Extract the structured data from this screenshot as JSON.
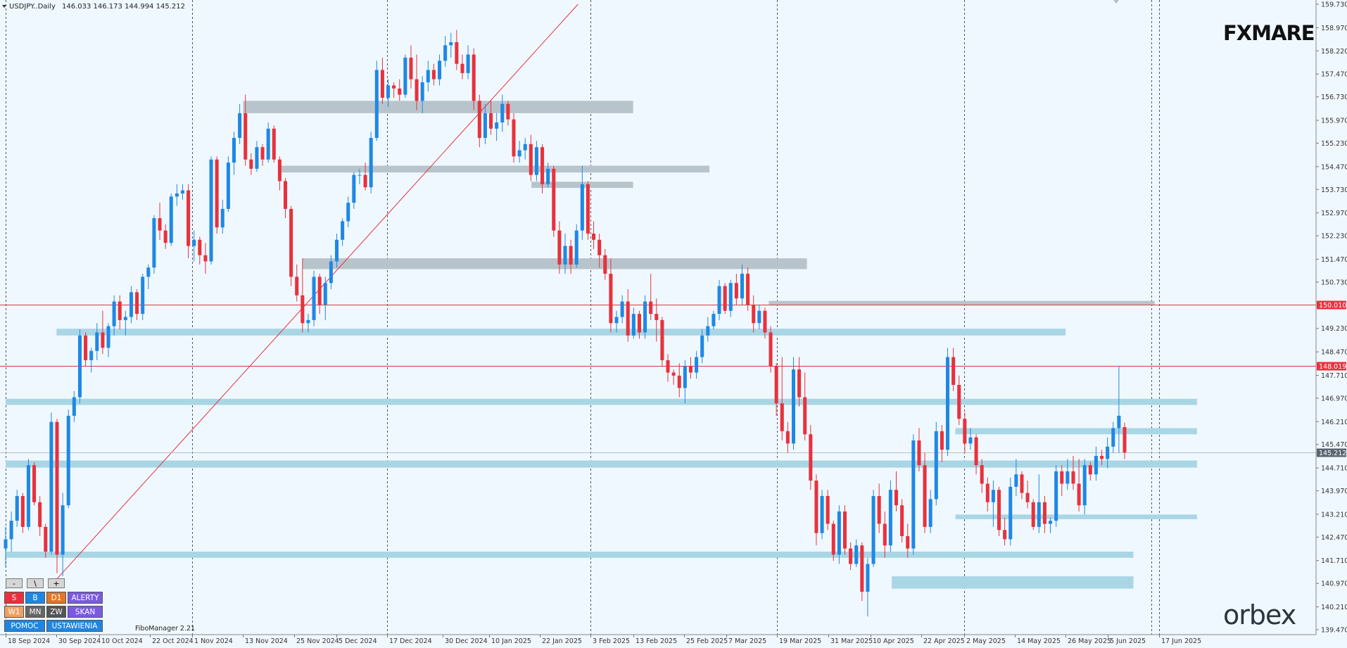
{
  "header": {
    "symbol": "USDJPY..Daily",
    "ohlc": "146.033 146.173 144.994 145.212"
  },
  "branding": {
    "top_logo": "FXMARE",
    "bottom_logo": "orbex"
  },
  "indicator": {
    "name": "FiboManager 2.21"
  },
  "toolbar": {
    "small_buttons": [
      "-",
      "\\",
      "+"
    ],
    "row1": [
      {
        "label": "S",
        "color": "#e8313c"
      },
      {
        "label": "B",
        "color": "#1f86e0"
      },
      {
        "label": "D1",
        "color": "#e0772b"
      },
      {
        "label": "ALERTY",
        "color": "#7a5ae0"
      }
    ],
    "row2": [
      {
        "label": "W1",
        "color": "#f0a060"
      },
      {
        "label": "MN",
        "color": "#666666"
      },
      {
        "label": "ZW",
        "color": "#555555"
      },
      {
        "label": "SKAN",
        "color": "#7a5ae0"
      }
    ],
    "row3": [
      {
        "label": "POMOC",
        "color": "#1f86e0"
      },
      {
        "label": "USTAWIENIA",
        "color": "#1f86e0"
      }
    ]
  },
  "chart_data": {
    "type": "candlestick",
    "symbol": "USDJPY",
    "timeframe": "Daily",
    "colors": {
      "bull": "#1e88e5",
      "bear": "#e8313c",
      "zone": "#a9d6e5",
      "level": "#e8313c"
    },
    "ylim": [
      139.47,
      159.73
    ],
    "y_ticks": [
      159.73,
      158.97,
      158.22,
      157.47,
      156.73,
      155.97,
      155.23,
      154.47,
      153.73,
      152.97,
      152.23,
      151.47,
      150.73,
      149.23,
      148.47,
      147.71,
      146.97,
      146.21,
      145.47,
      144.71,
      143.97,
      143.21,
      142.47,
      141.71,
      140.97,
      140.21,
      139.47
    ],
    "y_tick_labels": [
      "159.730",
      "158.970",
      "158.220",
      "157.470",
      "156.730",
      "155.970",
      "155.230",
      "154.470",
      "153.730",
      "152.970",
      "152.230",
      "151.470",
      "150.730",
      "149.230",
      "148.470",
      "147.710",
      "146.970",
      "146.210",
      "145.470",
      "144.710",
      "143.970",
      "143.210",
      "142.470",
      "141.710",
      "140.970",
      "140.210",
      "139.470"
    ],
    "x_labels": [
      "18 Sep 2024",
      "30 Sep 2024",
      "10 Oct 2024",
      "22 Oct 2024",
      "1 Nov 2024",
      "13 Nov 2024",
      "25 Nov 2024",
      "5 Dec 2024",
      "17 Dec 2024",
      "30 Dec 2024",
      "10 Jan 2025",
      "22 Jan 2025",
      "3 Feb 2025",
      "13 Feb 2025",
      "25 Feb 2025",
      "7 Mar 2025",
      "19 Mar 2025",
      "31 Mar 2025",
      "10 Apr 2025",
      "22 Apr 2025",
      "2 May 2025",
      "14 May 2025",
      "26 May 2025",
      "5 Jun 2025",
      "17 Jun 2025"
    ],
    "price_lines": [
      {
        "price": 150.01,
        "label": "150.010"
      },
      {
        "price": 148.019,
        "label": "148.019"
      }
    ],
    "current_price": {
      "price": 145.212,
      "label": "145.212"
    },
    "trendline": {
      "from": [
        "30 Sep 2024",
        141.1
      ],
      "to": [
        "31 Jan 2025",
        159.73
      ]
    },
    "zones": [
      {
        "from": "13 Nov 2024",
        "to": "13 Feb 2025",
        "low": 156.2,
        "high": 156.6
      },
      {
        "from": "22 Nov 2024",
        "to": "3 Mar 2025",
        "low": 154.28,
        "high": 154.5
      },
      {
        "from": "20 Jan 2025",
        "to": "13 Feb 2025",
        "low": 153.78,
        "high": 153.98
      },
      {
        "from": "27 Nov 2024",
        "to": "26 Mar 2025",
        "low": 151.15,
        "high": 151.5
      },
      {
        "from": "30 Sep 2024",
        "to": "26 May 2025",
        "low": 149.0,
        "high": 149.22
      },
      {
        "from": "18 Sep 2024",
        "to": "26 Jun 2025",
        "low": 146.75,
        "high": 146.95
      },
      {
        "from": "30 Apr 2025",
        "to": "26 Jun 2025",
        "low": 145.8,
        "high": 146.0
      },
      {
        "from": "18 Sep 2024",
        "to": "26 Jun 2025",
        "low": 144.72,
        "high": 144.95
      },
      {
        "from": "30 Apr 2025",
        "to": "26 Jun 2025",
        "low": 143.05,
        "high": 143.2
      },
      {
        "from": "18 Sep 2024",
        "to": "11 Jun 2025",
        "low": 141.8,
        "high": 142.0
      },
      {
        "from": "15 Apr 2025",
        "to": "11 Jun 2025",
        "low": 140.8,
        "high": 141.2
      },
      {
        "from": "17 Mar 2025",
        "to": "16 Jun 2025",
        "low": 150.0,
        "high": 150.12
      }
    ],
    "candles": [
      [
        142.1,
        142.8,
        141.5,
        142.4
      ],
      [
        142.4,
        143.3,
        142.0,
        143.0
      ],
      [
        143.0,
        144.0,
        142.8,
        143.8
      ],
      [
        143.8,
        143.9,
        142.6,
        142.8
      ],
      [
        142.8,
        145.0,
        142.7,
        144.8
      ],
      [
        144.8,
        144.9,
        143.5,
        143.6
      ],
      [
        143.6,
        143.8,
        142.5,
        142.8
      ],
      [
        142.8,
        142.9,
        141.8,
        142.0
      ],
      [
        142.0,
        146.5,
        141.9,
        146.2
      ],
      [
        146.2,
        146.3,
        141.3,
        141.9
      ],
      [
        141.9,
        143.9,
        141.2,
        143.5
      ],
      [
        143.5,
        146.6,
        143.4,
        146.4
      ],
      [
        146.4,
        147.2,
        146.2,
        147.0
      ],
      [
        147.0,
        149.2,
        146.8,
        149.0
      ],
      [
        149.0,
        149.1,
        148.0,
        148.2
      ],
      [
        148.2,
        148.6,
        147.8,
        148.5
      ],
      [
        148.5,
        149.4,
        148.2,
        149.1
      ],
      [
        149.1,
        149.8,
        148.4,
        148.6
      ],
      [
        148.6,
        149.4,
        148.3,
        149.3
      ],
      [
        149.3,
        150.3,
        149.0,
        150.1
      ],
      [
        150.1,
        150.3,
        149.2,
        149.5
      ],
      [
        149.5,
        149.8,
        149.0,
        149.6
      ],
      [
        149.6,
        150.6,
        149.4,
        150.4
      ],
      [
        150.4,
        150.5,
        149.5,
        149.7
      ],
      [
        149.7,
        151.0,
        149.5,
        150.9
      ],
      [
        150.9,
        151.3,
        150.5,
        151.2
      ],
      [
        151.2,
        152.9,
        151.0,
        152.8
      ],
      [
        152.8,
        153.3,
        152.1,
        152.4
      ],
      [
        152.4,
        152.6,
        151.8,
        152.0
      ],
      [
        152.0,
        153.6,
        151.9,
        153.5
      ],
      [
        153.5,
        153.9,
        153.2,
        153.6
      ],
      [
        153.6,
        153.9,
        153.4,
        153.7
      ],
      [
        153.7,
        153.9,
        151.5,
        151.9
      ],
      [
        151.9,
        152.4,
        151.4,
        152.1
      ],
      [
        152.1,
        152.2,
        151.3,
        151.6
      ],
      [
        151.6,
        152.0,
        151.0,
        151.4
      ],
      [
        151.4,
        154.8,
        151.3,
        154.7
      ],
      [
        154.7,
        154.8,
        152.3,
        152.5
      ],
      [
        152.5,
        153.4,
        152.3,
        153.1
      ],
      [
        153.1,
        154.8,
        153.0,
        154.6
      ],
      [
        154.6,
        155.6,
        154.2,
        155.4
      ],
      [
        155.4,
        156.5,
        155.2,
        156.2
      ],
      [
        156.2,
        156.8,
        154.5,
        154.7
      ],
      [
        154.7,
        154.9,
        154.2,
        154.4
      ],
      [
        154.4,
        155.3,
        154.3,
        155.1
      ],
      [
        155.1,
        155.2,
        154.5,
        154.7
      ],
      [
        154.7,
        155.9,
        154.6,
        155.7
      ],
      [
        155.7,
        155.8,
        154.6,
        154.7
      ],
      [
        154.7,
        154.8,
        153.7,
        154.0
      ],
      [
        154.0,
        154.1,
        152.8,
        153.1
      ],
      [
        153.1,
        153.2,
        150.6,
        150.9
      ],
      [
        150.9,
        151.3,
        150.1,
        150.3
      ],
      [
        150.3,
        151.5,
        149.1,
        149.4
      ],
      [
        149.4,
        149.7,
        149.1,
        149.5
      ],
      [
        149.5,
        151.1,
        149.3,
        150.9
      ],
      [
        150.9,
        151.0,
        149.7,
        150.0
      ],
      [
        150.0,
        150.9,
        149.5,
        150.7
      ],
      [
        150.7,
        151.6,
        150.5,
        151.4
      ],
      [
        151.4,
        152.3,
        151.2,
        152.1
      ],
      [
        152.1,
        152.8,
        151.9,
        152.7
      ],
      [
        152.7,
        153.5,
        152.5,
        153.3
      ],
      [
        153.3,
        154.3,
        153.1,
        154.2
      ],
      [
        154.2,
        154.4,
        153.9,
        154.2
      ],
      [
        154.2,
        154.6,
        153.7,
        153.8
      ],
      [
        153.8,
        155.6,
        153.6,
        155.4
      ],
      [
        155.4,
        157.9,
        155.3,
        157.6
      ],
      [
        157.6,
        158.0,
        156.5,
        156.7
      ],
      [
        156.7,
        157.3,
        156.4,
        157.1
      ],
      [
        157.1,
        157.2,
        156.7,
        157.0
      ],
      [
        157.0,
        157.3,
        156.6,
        156.8
      ],
      [
        156.8,
        158.1,
        156.7,
        158.0
      ],
      [
        158.0,
        158.4,
        157.0,
        157.3
      ],
      [
        157.3,
        158.1,
        156.3,
        156.6
      ],
      [
        156.6,
        157.4,
        156.2,
        157.2
      ],
      [
        157.2,
        157.9,
        156.9,
        157.6
      ],
      [
        157.6,
        157.8,
        157.1,
        157.3
      ],
      [
        157.3,
        158.1,
        157.1,
        157.9
      ],
      [
        157.9,
        158.7,
        157.7,
        158.4
      ],
      [
        158.4,
        158.8,
        158.0,
        158.5
      ],
      [
        158.5,
        158.9,
        157.6,
        157.8
      ],
      [
        157.8,
        158.1,
        157.3,
        157.5
      ],
      [
        157.5,
        158.4,
        157.3,
        158.1
      ],
      [
        158.1,
        158.3,
        156.3,
        156.6
      ],
      [
        156.6,
        156.8,
        155.1,
        155.4
      ],
      [
        155.4,
        156.5,
        155.2,
        156.2
      ],
      [
        156.2,
        156.6,
        155.5,
        155.7
      ],
      [
        155.7,
        156.2,
        155.3,
        155.9
      ],
      [
        155.9,
        156.8,
        155.6,
        156.5
      ],
      [
        156.5,
        156.6,
        155.8,
        156.0
      ],
      [
        156.0,
        156.2,
        154.6,
        154.8
      ],
      [
        154.8,
        155.3,
        154.6,
        155.0
      ],
      [
        155.0,
        155.4,
        154.7,
        155.2
      ],
      [
        155.2,
        155.5,
        154.0,
        154.2
      ],
      [
        154.2,
        155.3,
        154.0,
        155.1
      ],
      [
        155.1,
        155.2,
        153.6,
        153.9
      ],
      [
        153.9,
        154.6,
        153.8,
        154.4
      ],
      [
        154.4,
        154.5,
        152.2,
        152.4
      ],
      [
        152.4,
        152.7,
        151.0,
        151.3
      ],
      [
        151.3,
        152.3,
        151.0,
        151.9
      ],
      [
        151.9,
        152.1,
        151.0,
        151.3
      ],
      [
        151.3,
        152.6,
        151.2,
        152.4
      ],
      [
        152.4,
        154.5,
        152.1,
        153.9
      ],
      [
        153.9,
        154.0,
        152.1,
        152.3
      ],
      [
        152.3,
        152.7,
        151.8,
        152.1
      ],
      [
        152.1,
        152.3,
        151.2,
        151.6
      ],
      [
        151.6,
        151.8,
        150.8,
        151.0
      ],
      [
        151.0,
        151.5,
        149.1,
        149.4
      ],
      [
        149.4,
        149.8,
        149.1,
        149.6
      ],
      [
        149.6,
        150.3,
        149.4,
        150.1
      ],
      [
        150.1,
        150.5,
        148.8,
        149.0
      ],
      [
        149.0,
        149.9,
        148.9,
        149.7
      ],
      [
        149.7,
        149.8,
        148.9,
        149.1
      ],
      [
        149.1,
        150.3,
        148.9,
        150.1
      ],
      [
        150.1,
        151.0,
        149.5,
        149.7
      ],
      [
        149.7,
        150.2,
        148.8,
        149.5
      ],
      [
        149.5,
        149.6,
        148.0,
        148.2
      ],
      [
        148.2,
        148.4,
        147.5,
        147.8
      ],
      [
        147.8,
        147.9,
        147.4,
        147.7
      ],
      [
        147.7,
        148.1,
        147.0,
        147.3
      ],
      [
        147.3,
        148.2,
        146.8,
        148.0
      ],
      [
        148.0,
        148.3,
        147.6,
        147.8
      ],
      [
        147.8,
        148.5,
        147.6,
        148.3
      ],
      [
        148.3,
        149.2,
        148.1,
        149.0
      ],
      [
        149.0,
        149.6,
        148.8,
        149.3
      ],
      [
        149.3,
        149.8,
        149.2,
        149.7
      ],
      [
        149.7,
        150.8,
        149.5,
        150.6
      ],
      [
        150.6,
        150.7,
        149.7,
        149.8
      ],
      [
        149.8,
        150.8,
        149.6,
        150.7
      ],
      [
        150.7,
        151.0,
        150.0,
        150.2
      ],
      [
        150.2,
        151.3,
        150.0,
        151.0
      ],
      [
        151.0,
        151.2,
        149.8,
        150.0
      ],
      [
        150.0,
        150.3,
        149.1,
        149.4
      ],
      [
        149.4,
        150.0,
        149.2,
        149.8
      ],
      [
        149.8,
        149.9,
        148.9,
        149.1
      ],
      [
        149.1,
        149.3,
        147.8,
        148.0
      ],
      [
        148.0,
        148.1,
        146.4,
        146.8
      ],
      [
        146.8,
        148.3,
        145.6,
        145.9
      ],
      [
        145.9,
        146.2,
        145.2,
        145.5
      ],
      [
        145.5,
        148.3,
        145.3,
        147.9
      ],
      [
        147.9,
        148.3,
        146.7,
        147.0
      ],
      [
        147.0,
        147.8,
        145.6,
        145.8
      ],
      [
        145.8,
        146.1,
        144.0,
        144.3
      ],
      [
        144.3,
        144.5,
        142.2,
        142.6
      ],
      [
        142.6,
        144.0,
        142.4,
        143.8
      ],
      [
        143.8,
        144.0,
        142.7,
        142.9
      ],
      [
        142.9,
        143.0,
        141.7,
        141.9
      ],
      [
        141.9,
        143.5,
        141.6,
        143.3
      ],
      [
        143.3,
        143.5,
        141.9,
        142.1
      ],
      [
        142.1,
        142.3,
        141.4,
        141.6
      ],
      [
        141.6,
        142.4,
        141.5,
        142.2
      ],
      [
        142.2,
        142.3,
        140.4,
        140.7
      ],
      [
        140.7,
        141.8,
        139.9,
        141.6
      ],
      [
        141.6,
        144.0,
        141.5,
        143.8
      ],
      [
        143.8,
        144.2,
        142.6,
        142.9
      ],
      [
        142.9,
        143.3,
        141.8,
        142.2
      ],
      [
        142.2,
        144.3,
        142.0,
        144.0
      ],
      [
        144.0,
        144.6,
        143.3,
        143.5
      ],
      [
        143.5,
        143.7,
        142.3,
        142.5
      ],
      [
        142.5,
        142.9,
        141.8,
        142.1
      ],
      [
        142.1,
        145.8,
        141.9,
        145.6
      ],
      [
        145.6,
        146.0,
        144.6,
        144.8
      ],
      [
        144.8,
        145.2,
        142.6,
        142.8
      ],
      [
        142.8,
        144.0,
        142.6,
        143.7
      ],
      [
        143.7,
        146.2,
        143.5,
        145.9
      ],
      [
        145.9,
        146.1,
        144.9,
        145.3
      ],
      [
        145.3,
        148.6,
        145.1,
        148.3
      ],
      [
        148.3,
        148.6,
        147.2,
        147.4
      ],
      [
        147.4,
        147.7,
        146.1,
        146.3
      ],
      [
        146.3,
        146.5,
        145.2,
        145.5
      ],
      [
        145.5,
        146.0,
        145.3,
        145.7
      ],
      [
        145.7,
        145.8,
        144.5,
        144.8
      ],
      [
        144.8,
        145.0,
        143.9,
        144.2
      ],
      [
        144.2,
        144.4,
        143.3,
        143.6
      ],
      [
        143.6,
        144.3,
        142.8,
        144.0
      ],
      [
        144.0,
        144.1,
        142.5,
        142.7
      ],
      [
        142.7,
        143.1,
        142.2,
        142.4
      ],
      [
        142.4,
        144.4,
        142.2,
        144.1
      ],
      [
        144.1,
        145.0,
        143.8,
        144.5
      ],
      [
        144.5,
        144.6,
        143.7,
        143.9
      ],
      [
        143.9,
        144.3,
        143.4,
        143.6
      ],
      [
        143.6,
        143.7,
        142.7,
        142.8
      ],
      [
        142.8,
        144.5,
        142.6,
        143.6
      ],
      [
        143.6,
        143.8,
        142.6,
        142.9
      ],
      [
        142.9,
        143.1,
        142.6,
        143.0
      ],
      [
        143.0,
        144.8,
        142.8,
        144.6
      ],
      [
        144.6,
        144.8,
        143.8,
        144.2
      ],
      [
        144.2,
        145.0,
        144.0,
        144.6
      ],
      [
        144.6,
        145.1,
        144.0,
        144.2
      ],
      [
        144.2,
        145.0,
        143.3,
        143.5
      ],
      [
        143.5,
        145.0,
        143.2,
        144.8
      ],
      [
        144.8,
        144.9,
        144.3,
        144.5
      ],
      [
        144.5,
        145.4,
        144.3,
        145.1
      ],
      [
        145.1,
        145.3,
        144.8,
        145.0
      ],
      [
        145.0,
        145.7,
        144.7,
        145.4
      ],
      [
        145.4,
        146.2,
        145.2,
        146.0
      ],
      [
        146.0,
        148.0,
        145.2,
        146.4
      ],
      [
        146.033,
        146.173,
        144.994,
        145.212
      ]
    ]
  }
}
